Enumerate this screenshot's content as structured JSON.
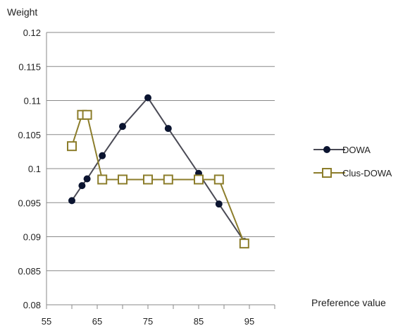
{
  "chart_data": {
    "type": "line",
    "ylabel": "Weight",
    "xlabel": "Preference value",
    "xlim": [
      55,
      100
    ],
    "ylim": [
      0.08,
      0.12
    ],
    "x_ticks": [
      "55",
      "65",
      "75",
      "85",
      "95"
    ],
    "y_ticks": [
      "0.12",
      "0.115",
      "0.11",
      "0.105",
      "0.1",
      "0.095",
      "0.09",
      "0.085",
      "0.08"
    ],
    "grid": "horizontal",
    "legend_position": "right",
    "series": [
      {
        "name": "DOWA",
        "color": "#4a4a55",
        "marker": "filled-circle",
        "x": [
          60,
          62,
          63,
          66,
          70,
          75,
          79,
          85,
          89,
          94
        ],
        "y": [
          0.0953,
          0.0975,
          0.0985,
          0.1019,
          0.1062,
          0.1104,
          0.1059,
          0.0993,
          0.0948,
          0.0893
        ]
      },
      {
        "name": "Clus-DOWA",
        "color": "#8c7d2b",
        "marker": "open-square",
        "x": [
          60,
          62,
          63,
          66,
          70,
          75,
          79,
          85,
          89,
          94
        ],
        "y": [
          0.1033,
          0.1079,
          0.1079,
          0.0984,
          0.0984,
          0.0984,
          0.0984,
          0.0984,
          0.0984,
          0.089
        ]
      }
    ]
  }
}
